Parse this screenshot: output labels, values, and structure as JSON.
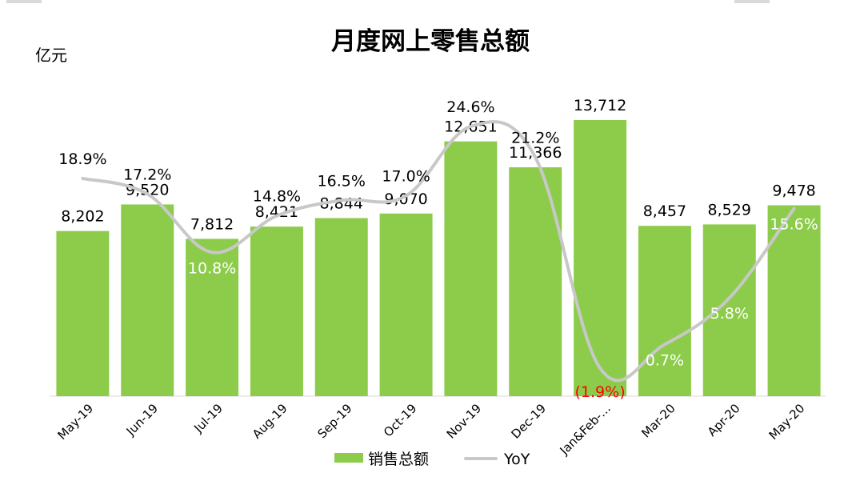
{
  "chart_data": {
    "type": "bar",
    "title": "月度网上零售总额",
    "unit_label": "亿元",
    "categories": [
      "May-19",
      "Jun-19",
      "Jul-19",
      "Aug-19",
      "Sep-19",
      "Oct-19",
      "Nov-19",
      "Dec-19",
      "Jan&Feb-…",
      "Mar-20",
      "Apr-20",
      "May-20"
    ],
    "series": [
      {
        "name": "销售总额",
        "kind": "bar",
        "color": "#8ccc4a",
        "values": [
          8202,
          9520,
          7812,
          8421,
          8844,
          9070,
          12651,
          11366,
          13712,
          8457,
          8529,
          9478
        ],
        "labels": [
          "8,202",
          "9,520",
          "7,812",
          "8,421",
          "8,844",
          "9,070",
          "12,651",
          "11,366",
          "13,712",
          "8,457",
          "8,529",
          "9,478"
        ]
      },
      {
        "name": "YoY",
        "kind": "line",
        "color": "#c8c8c8",
        "values": [
          18.9,
          17.2,
          10.8,
          14.8,
          16.5,
          17.0,
          24.6,
          21.2,
          -1.9,
          0.7,
          5.8,
          15.6
        ],
        "labels": [
          "18.9%",
          "17.2%",
          "10.8%",
          "14.8%",
          "16.5%",
          "17.0%",
          "24.6%",
          "21.2%",
          "(1.9%)",
          "0.7%",
          "5.8%",
          "15.6%"
        ],
        "negative_color": "#ff0000"
      }
    ],
    "ylim": [
      0,
      13712
    ],
    "y2lim": [
      -1.9,
      24.6
    ],
    "legend": "bottom",
    "grid": false
  }
}
